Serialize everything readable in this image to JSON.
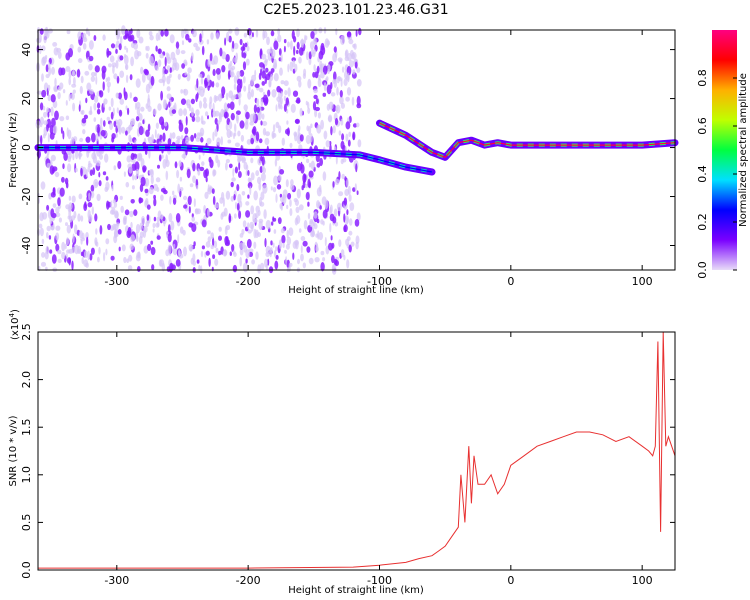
{
  "chart_data": [
    {
      "type": "heatmap",
      "title": "C2E5.2023.101.23.46.G31",
      "xlabel": "Height of straight line (km)",
      "ylabel": "Frequency (Hz)",
      "xlim": [
        -360,
        125
      ],
      "ylim": [
        -50,
        48
      ],
      "x_ticks": [
        -300,
        -200,
        -100,
        0,
        100
      ],
      "y_ticks": [
        -40,
        -20,
        0,
        20,
        40
      ],
      "colorbar": {
        "label": "Normalized spectral amplitude",
        "range": [
          0,
          1
        ],
        "ticks": [
          "0.0",
          "0.2",
          "0.4",
          "0.6",
          "0.8"
        ],
        "colors": [
          "#e8dcf8",
          "#7a00ff",
          "#0000ff",
          "#00e0ff",
          "#00ff40",
          "#c0ff00",
          "#ffb000",
          "#ff0000",
          "#ff0080"
        ]
      },
      "traces": [
        {
          "x": [
            -360,
            -300,
            -250,
            -200,
            -150,
            -115,
            -100,
            -80,
            -60
          ],
          "y": [
            0,
            0,
            0,
            -2,
            -2,
            -3,
            -5,
            -8,
            -10
          ]
        },
        {
          "x": [
            -100,
            -80,
            -60,
            -50,
            -40,
            -30,
            -20,
            -10,
            0,
            50,
            100,
            125
          ],
          "y": [
            10,
            5,
            -2,
            -4,
            2,
            3,
            1,
            2,
            1,
            1,
            1,
            2
          ]
        }
      ]
    },
    {
      "type": "line",
      "xlabel": "Height of straight line (km)",
      "ylabel": "SNR (10 * v/v)",
      "y_multiplier": "(x10",
      "y_multiplier_exp": "4",
      "y_multiplier_close": ")",
      "xlim": [
        -360,
        125
      ],
      "ylim": [
        0,
        2.5
      ],
      "x_ticks": [
        -300,
        -200,
        -100,
        0,
        100
      ],
      "y_ticks": [
        "0.0",
        "0.5",
        "1.0",
        "1.5",
        "2.0",
        "2.5"
      ],
      "series_color": "#e83030",
      "x": [
        -360,
        -300,
        -200,
        -120,
        -100,
        -80,
        -70,
        -60,
        -55,
        -50,
        -45,
        -40,
        -38,
        -35,
        -32,
        -30,
        -28,
        -25,
        -20,
        -15,
        -10,
        -5,
        0,
        10,
        20,
        30,
        40,
        50,
        60,
        70,
        80,
        90,
        100,
        105,
        108,
        110,
        112,
        114,
        116,
        118,
        120,
        125
      ],
      "y": [
        0.02,
        0.02,
        0.02,
        0.03,
        0.05,
        0.08,
        0.12,
        0.15,
        0.2,
        0.25,
        0.35,
        0.45,
        1.0,
        0.5,
        1.3,
        0.7,
        1.2,
        0.9,
        0.9,
        1.0,
        0.8,
        0.9,
        1.1,
        1.2,
        1.3,
        1.35,
        1.4,
        1.45,
        1.45,
        1.42,
        1.35,
        1.4,
        1.3,
        1.25,
        1.2,
        1.3,
        2.4,
        0.4,
        2.5,
        1.3,
        1.4,
        1.2
      ]
    }
  ]
}
